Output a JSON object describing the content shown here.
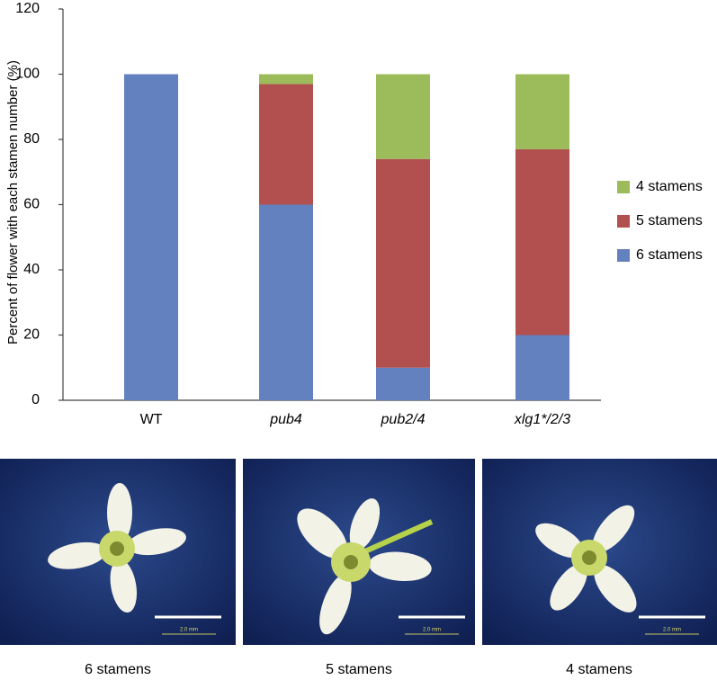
{
  "chart_data": {
    "type": "stacked_bar",
    "y_label": "Percent of flower with each stamen number (%)",
    "categories": [
      "WT",
      "pub4",
      "pub2/4",
      "xlg1*/2/3"
    ],
    "category_italic": [
      false,
      true,
      true,
      true
    ],
    "series": [
      {
        "name": "6 stamens",
        "color": "#6381be",
        "values": [
          100,
          60,
          10,
          20
        ]
      },
      {
        "name": "5 stamens",
        "color": "#b1504f",
        "values": [
          0,
          37,
          64,
          57
        ]
      },
      {
        "name": "4 stamens",
        "color": "#9cbb5a",
        "values": [
          0,
          3,
          26,
          23
        ]
      }
    ],
    "ylim": [
      0,
      120
    ],
    "yticks": [
      0,
      20,
      40,
      60,
      80,
      100,
      120
    ],
    "grid": false,
    "legend": "right"
  },
  "images": [
    {
      "caption": "6 stamens",
      "scale_label": "2.0 mm"
    },
    {
      "caption": "5 stamens",
      "scale_label": "2.0 mm"
    },
    {
      "caption": "4 stamens",
      "scale_label": "2.0 mm"
    }
  ]
}
